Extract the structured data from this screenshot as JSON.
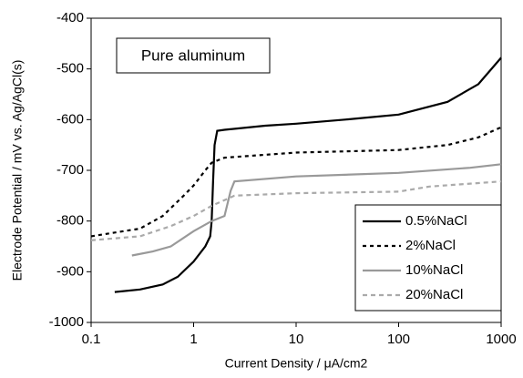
{
  "chart_data": {
    "type": "line",
    "annotation": "Pure aluminum",
    "x_label": "Current Density / μA/cm2",
    "y_label": "Electrode Potential / mV vs. Ag/AgCl(s)",
    "log_x": true,
    "xlim": [
      0.1,
      1000
    ],
    "xticks": [
      0.1,
      1,
      10,
      100,
      1000
    ],
    "ylim": [
      -1000,
      -400
    ],
    "yticks": [
      -1000,
      -900,
      -800,
      -700,
      -600,
      -500,
      -400
    ],
    "legend": "lower right",
    "series": [
      {
        "name": "0.5%NaCl",
        "color": "#000000",
        "dash": "solid",
        "x": [
          0.17,
          0.3,
          0.5,
          0.7,
          1.0,
          1.3,
          1.45,
          1.5,
          1.55,
          1.6,
          1.7,
          2,
          5,
          10,
          30,
          100,
          300,
          600,
          1000
        ],
        "values": [
          -940,
          -935,
          -925,
          -910,
          -880,
          -850,
          -830,
          -800,
          -720,
          -650,
          -622,
          -620,
          -612,
          -608,
          -600,
          -590,
          -565,
          -530,
          -478
        ]
      },
      {
        "name": "2%NaCl",
        "color": "#000000",
        "dash": "dotted",
        "x": [
          0.1,
          0.3,
          0.5,
          0.8,
          1.0,
          1.3,
          1.5,
          2,
          10,
          100,
          300,
          600,
          1000
        ],
        "values": [
          -830,
          -815,
          -790,
          -750,
          -730,
          -700,
          -685,
          -675,
          -665,
          -660,
          -650,
          -635,
          -615
        ]
      },
      {
        "name": "10%NaCl",
        "color": "#999999",
        "dash": "solid",
        "x": [
          0.25,
          0.4,
          0.6,
          1.0,
          1.5,
          2,
          2.3,
          2.5,
          10,
          100,
          500,
          1000
        ],
        "values": [
          -868,
          -860,
          -850,
          -820,
          -800,
          -790,
          -740,
          -722,
          -712,
          -705,
          -695,
          -688
        ]
      },
      {
        "name": "20%NaCl",
        "color": "#aaaaaa",
        "dash": "dashed",
        "x": [
          0.1,
          0.3,
          0.6,
          1,
          1.5,
          2.5,
          10,
          100,
          200,
          1000
        ],
        "values": [
          -838,
          -830,
          -810,
          -790,
          -770,
          -750,
          -745,
          -742,
          -732,
          -722
        ]
      }
    ]
  }
}
